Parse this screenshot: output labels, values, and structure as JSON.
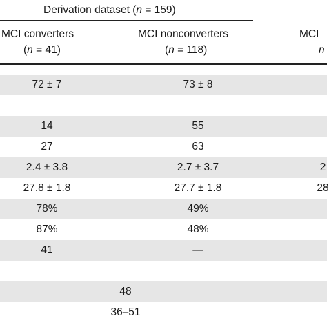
{
  "header": {
    "group_derivation": {
      "prefix": "Derivation dataset (",
      "n_label": "n",
      "suffix": " = 159)"
    },
    "col_converters": {
      "title": "MCI converters",
      "n_prefix": "(",
      "n_label": "n",
      "n_suffix": " = 41)"
    },
    "col_nonconverters": {
      "title": "MCI nonconverters",
      "n_prefix": "(",
      "n_label": "n",
      "n_suffix": " = 118)"
    },
    "col_third_partial": {
      "title": "MCI",
      "n_label": "n"
    }
  },
  "rows": [
    {
      "converters": "72 ± 7",
      "nonconverters": "73 ± 8",
      "shaded": true
    },
    {
      "converters": "",
      "nonconverters": "",
      "shaded": false
    },
    {
      "converters": "14",
      "nonconverters": "55",
      "shaded": true
    },
    {
      "converters": "27",
      "nonconverters": "63",
      "shaded": false
    },
    {
      "converters": "2.4 ± 3.8",
      "nonconverters": "2.7 ± 3.7",
      "third": "2",
      "shaded": true
    },
    {
      "converters": "27.8 ± 1.8",
      "nonconverters": "27.7 ± 1.8",
      "third": "28",
      "shaded": false
    },
    {
      "converters": "78%",
      "nonconverters": "49%",
      "shaded": true
    },
    {
      "converters": "87%",
      "nonconverters": "48%",
      "shaded": false
    },
    {
      "converters": "41",
      "nonconverters": "—",
      "shaded": true
    },
    {
      "converters": "",
      "nonconverters": "",
      "shaded": false
    },
    {
      "spanning": "48",
      "shaded": true
    },
    {
      "spanning": "36–51",
      "shaded": false
    }
  ]
}
